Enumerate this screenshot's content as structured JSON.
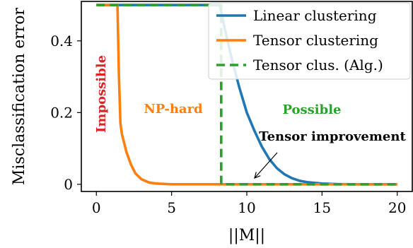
{
  "chart_data": {
    "type": "line",
    "xlabel": "||M||",
    "ylabel": "Misclassification error",
    "xlim": [
      -1,
      21
    ],
    "ylim": [
      -0.02,
      0.51
    ],
    "xticks": [
      0,
      5,
      10,
      15,
      20
    ],
    "xtick_labels": [
      "0",
      "5",
      "10",
      "15",
      "20"
    ],
    "yticks": [
      0,
      0.2,
      0.4
    ],
    "ytick_labels": [
      "0",
      "0.2",
      "0.4"
    ],
    "legend_position": "top-right",
    "series": [
      {
        "name": "Linear clustering",
        "color": "#1f77b4",
        "style": "solid",
        "x": [
          0,
          8.2,
          8.5,
          9,
          9.5,
          10,
          10.5,
          11,
          11.5,
          12,
          12.5,
          13,
          13.5,
          14,
          15,
          16,
          17,
          20
        ],
        "y": [
          0.5,
          0.5,
          0.44,
          0.35,
          0.27,
          0.2,
          0.15,
          0.105,
          0.07,
          0.045,
          0.028,
          0.017,
          0.01,
          0.006,
          0.002,
          0.0005,
          0.0,
          0.0
        ]
      },
      {
        "name": "Tensor clustering",
        "color": "#ff7f0e",
        "style": "solid",
        "x": [
          0,
          1.4,
          1.5,
          1.6,
          1.7,
          2.0,
          2.3,
          2.6,
          3.0,
          3.5,
          4.0,
          5.0,
          20
        ],
        "y": [
          0.5,
          0.5,
          0.3,
          0.17,
          0.14,
          0.09,
          0.055,
          0.03,
          0.014,
          0.005,
          0.002,
          0.0,
          0.0
        ]
      },
      {
        "name": "Tensor clus. (Alg.)",
        "color": "#2ca02c",
        "style": "dashed",
        "x": [
          0,
          8.3,
          8.3,
          20
        ],
        "y": [
          0.5,
          0.5,
          0.0,
          0.0
        ]
      }
    ],
    "annotations": [
      {
        "text": "Impossible",
        "color": "#d62728"
      },
      {
        "text": "NP-hard",
        "color": "#ff7f0e"
      },
      {
        "text": "Possible",
        "color": "#2ca02c"
      },
      {
        "text": "Tensor improvement",
        "color": "#000000"
      }
    ]
  }
}
